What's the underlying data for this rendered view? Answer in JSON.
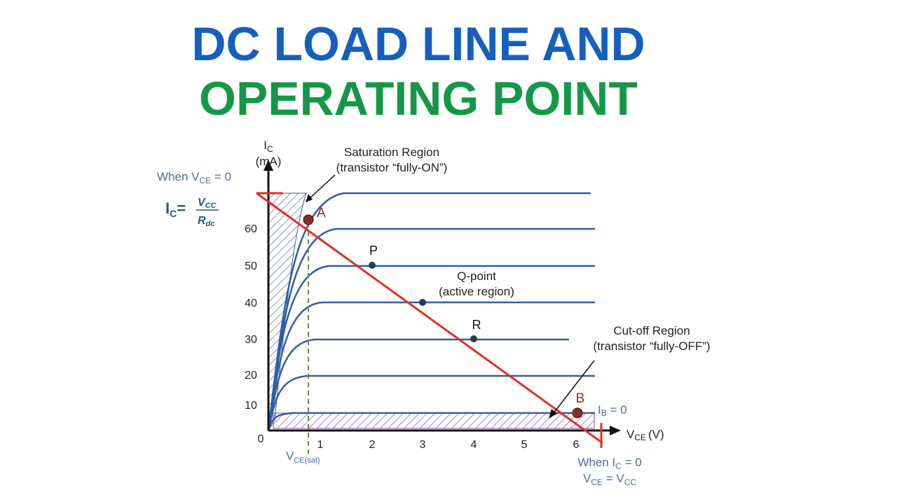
{
  "title": {
    "line1": "DC LOAD LINE AND",
    "line2": "OPERATING POINT"
  },
  "y_axis": {
    "symbol": "I",
    "sub": "C",
    "unit": "(mA)",
    "ticks": [
      "0",
      "10",
      "20",
      "30",
      "40",
      "50",
      "60"
    ]
  },
  "x_axis": {
    "symbol": "V",
    "sub": "CE",
    "unit": "(V)",
    "ticks": [
      "1",
      "2",
      "3",
      "4",
      "5",
      "6"
    ]
  },
  "when_vce": {
    "prefix": "When V",
    "sub": "CE",
    "suffix": " = 0"
  },
  "formula": {
    "lhs": "I",
    "lhs_sub": "C",
    "eq": "=",
    "num": "V",
    "num_sub": "CC",
    "den": "R",
    "den_sub": "dc"
  },
  "saturation": {
    "line1": "Saturation Region",
    "line2": "(transistor “fully-ON”)"
  },
  "qpoint": {
    "line1": "Q-point",
    "line2": "(active region)"
  },
  "cutoff": {
    "line1": "Cut-off Region",
    "line2": "(transistor “fully-OFF”)"
  },
  "ib": {
    "symbol": "I",
    "sub": "B",
    "suffix": " = 0"
  },
  "vce_sat": {
    "symbol": "V",
    "sub": "CE(sat)"
  },
  "when_ic": {
    "prefix": "When I",
    "sub": "C",
    "suffix": " = 0"
  },
  "vce_vcc": {
    "a": "V",
    "a_sub": "CE",
    "eq": " = V",
    "b_sub": "CC"
  },
  "points": {
    "A": "A",
    "B": "B",
    "P": "P",
    "R": "R"
  }
}
